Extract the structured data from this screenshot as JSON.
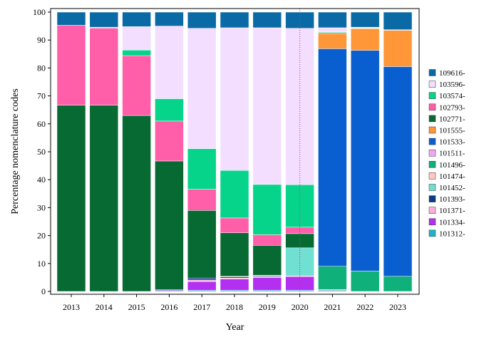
{
  "chart_data": {
    "type": "bar",
    "stacked": true,
    "xlabel": "Year",
    "ylabel": "Percentage nomenclature codes",
    "ylim": [
      0,
      100
    ],
    "yticks": [
      0,
      10,
      20,
      30,
      40,
      50,
      60,
      70,
      80,
      90,
      100
    ],
    "grid": false,
    "legend_position": "right",
    "categories": [
      "2013",
      "2014",
      "2015",
      "2016",
      "2017",
      "2018",
      "2019",
      "2020",
      "2021",
      "2022",
      "2023"
    ],
    "annotation": {
      "type": "vertical-dotted-line",
      "at": "2020",
      "color": "#b03a8a"
    },
    "series": [
      {
        "name": "101312-",
        "color": "#1fb3c9",
        "values": [
          0,
          0,
          0,
          0.3,
          0.4,
          0.4,
          0.4,
          0.4,
          0,
          0,
          0
        ]
      },
      {
        "name": "101334-",
        "color": "#b430f0",
        "values": [
          0,
          0,
          0,
          0.3,
          3.1,
          4.0,
          4.6,
          4.9,
          0,
          0,
          0
        ]
      },
      {
        "name": "101371-",
        "color": "#ffb0da",
        "values": [
          0,
          0,
          0,
          0,
          0.6,
          0.4,
          0.3,
          0.3,
          0.1,
          0,
          0
        ]
      },
      {
        "name": "101393-",
        "color": "#0a3a8a",
        "values": [
          0,
          0,
          0,
          0,
          0.7,
          0.4,
          0.3,
          0,
          0.3,
          0,
          0
        ]
      },
      {
        "name": "101452-",
        "color": "#6fe0d2",
        "values": [
          0,
          0,
          0,
          0,
          0,
          0,
          0,
          10.0,
          0.3,
          0,
          0
        ]
      },
      {
        "name": "101474-",
        "color": "#ffc8c0",
        "values": [
          0,
          0,
          0,
          0,
          0,
          0.2,
          0.2,
          0,
          0,
          0,
          0
        ]
      },
      {
        "name": "101496-",
        "color": "#0fb07a",
        "values": [
          0,
          0,
          0,
          0,
          0,
          0,
          0,
          0,
          8.3,
          7.3,
          5.4
        ]
      },
      {
        "name": "101511-",
        "color": "#f0a8f4",
        "values": [
          0,
          0,
          0,
          0,
          0,
          0,
          0,
          0,
          0,
          0,
          0
        ]
      },
      {
        "name": "101533-",
        "color": "#0a5fd0",
        "values": [
          0,
          0,
          0,
          0,
          0,
          0,
          0,
          0,
          77.9,
          79.0,
          75.1
        ]
      },
      {
        "name": "101555-",
        "color": "#ff9638",
        "values": [
          0,
          0,
          0,
          0,
          0,
          0,
          0,
          0,
          5.4,
          7.8,
          13.0
        ]
      },
      {
        "name": "102771-",
        "color": "#076a33",
        "values": [
          66.7,
          66.7,
          63.0,
          46.1,
          24.2,
          15.6,
          10.7,
          5.1,
          0.3,
          0.1,
          0
        ]
      },
      {
        "name": "102793-",
        "color": "#ff5ea8",
        "values": [
          28.6,
          27.6,
          21.4,
          14.3,
          7.6,
          5.3,
          3.8,
          2.3,
          0.1,
          0,
          0
        ]
      },
      {
        "name": "103574-",
        "color": "#07d48b",
        "values": [
          0,
          0,
          2.0,
          8.0,
          14.5,
          17.0,
          18.0,
          15.2,
          0.2,
          0.1,
          0.1
        ]
      },
      {
        "name": "103596-",
        "color": "#f3deff",
        "values": [
          0,
          0.3,
          8.4,
          26.0,
          43.1,
          51.1,
          56.1,
          56.0,
          1.5,
          0.3,
          0.1
        ]
      },
      {
        "name": "109616-",
        "color": "#0a6aa6",
        "values": [
          4.7,
          5.4,
          5.2,
          5.0,
          5.8,
          5.6,
          5.6,
          5.8,
          5.6,
          5.4,
          6.3
        ]
      }
    ]
  }
}
